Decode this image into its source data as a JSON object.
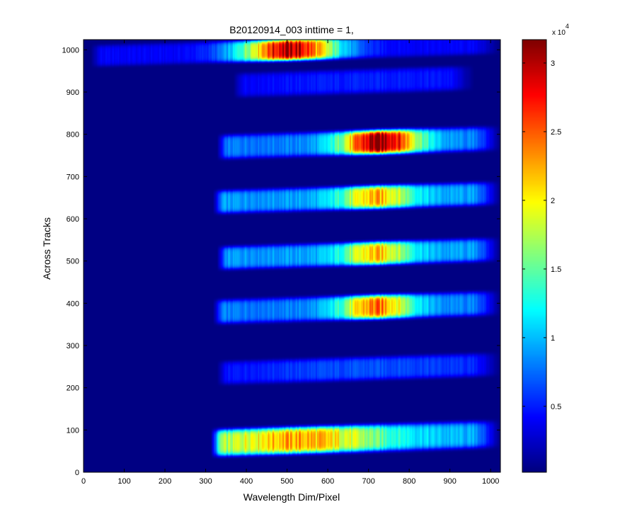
{
  "chart_data": {
    "type": "heatmap",
    "title": "B20120914_003 inttime = 1,",
    "xlabel": "Wavelength Dim/Pixel",
    "ylabel": "Across Tracks",
    "xlim": [
      0,
      1024
    ],
    "ylim": [
      0,
      1024
    ],
    "xticks": [
      0,
      100,
      200,
      300,
      400,
      500,
      600,
      700,
      800,
      900,
      1000
    ],
    "yticks": [
      0,
      100,
      200,
      300,
      400,
      500,
      600,
      700,
      800,
      900,
      1000
    ],
    "colorbar": {
      "colormap": "jet",
      "range": [
        200,
        31700
      ],
      "ticks": [
        0.5,
        1,
        1.5,
        2,
        2.5,
        3
      ],
      "tick_labels": [
        "0.5",
        "1",
        "1.5",
        "2",
        "2.5",
        "3"
      ],
      "exponent_label": "x 10",
      "exponent": "4"
    },
    "background_value": 300,
    "bands": [
      {
        "y_center": 1000,
        "half_height": 25,
        "x_start": 30,
        "x_end": 1024,
        "peak_x": 505,
        "peak_value": 30000,
        "width": 120,
        "base_value": 4000
      },
      {
        "y_center": 920,
        "half_height": 28,
        "x_start": 380,
        "x_end": 960,
        "peak_x": 700,
        "peak_value": 5000,
        "width": 400,
        "base_value": 3000
      },
      {
        "y_center": 775,
        "half_height": 28,
        "x_start": 340,
        "x_end": 1024,
        "peak_x": 730,
        "peak_value": 31500,
        "width": 95,
        "base_value": 8000
      },
      {
        "y_center": 645,
        "half_height": 27,
        "x_start": 330,
        "x_end": 1024,
        "peak_x": 720,
        "peak_value": 22000,
        "width": 90,
        "base_value": 9000
      },
      {
        "y_center": 512,
        "half_height": 27,
        "x_start": 340,
        "x_end": 1024,
        "peak_x": 720,
        "peak_value": 21500,
        "width": 85,
        "base_value": 9000
      },
      {
        "y_center": 385,
        "half_height": 28,
        "x_start": 330,
        "x_end": 1024,
        "peak_x": 720,
        "peak_value": 24000,
        "width": 90,
        "base_value": 8000
      },
      {
        "y_center": 240,
        "half_height": 27,
        "x_start": 340,
        "x_end": 1024,
        "peak_x": 700,
        "peak_value": 6500,
        "width": 350,
        "base_value": 3500
      },
      {
        "y_center": 75,
        "half_height": 31,
        "x_start": 325,
        "x_end": 1024,
        "peak_x": 520,
        "peak_value": 22500,
        "width": 230,
        "base_value": 9000
      }
    ]
  }
}
